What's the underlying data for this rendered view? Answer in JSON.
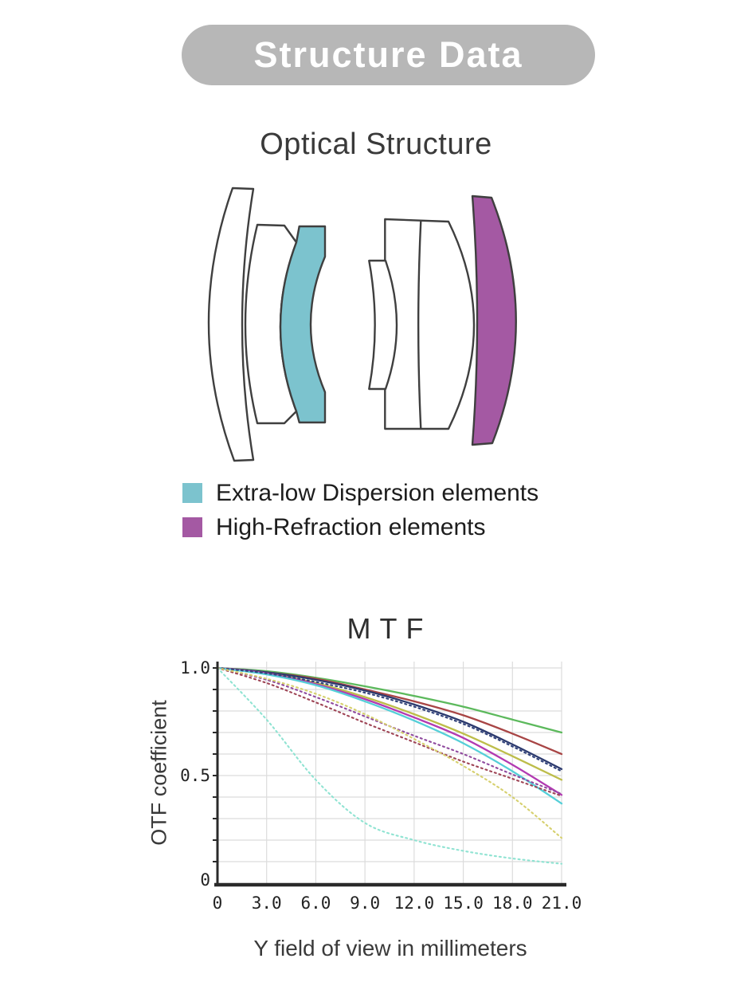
{
  "header": {
    "title": "Structure Data",
    "bg_color": "#b7b7b7",
    "text_color": "#ffffff"
  },
  "optical_structure": {
    "title": "Optical Structure",
    "outline_color": "#3f3f3f",
    "legend": [
      {
        "name": "extra-low-dispersion",
        "label": "Extra-low Dispersion elements",
        "color": "#7cc3ce"
      },
      {
        "name": "high-refraction",
        "label": "High-Refraction elements",
        "color": "#a459a3"
      }
    ]
  },
  "chart_data": {
    "type": "line",
    "title": "MTF",
    "ylabel": "OTF coefficient",
    "xlabel": "Y field of view in millimeters",
    "xlim": [
      0,
      21
    ],
    "ylim": [
      0,
      1
    ],
    "grid": true,
    "grid_step_y": 0.1,
    "grid_color": "#dcdcdc",
    "axis_color": "#2a2a2a",
    "x": [
      0,
      3,
      6,
      9,
      12,
      15,
      18,
      21
    ],
    "xtick_labels": [
      "0",
      "3.0",
      "6.0",
      "9.0",
      "12.0",
      "15.0",
      "18.0",
      "21.0"
    ],
    "ytick_values": [
      1.0,
      0.5,
      0
    ],
    "ytick_labels": [
      "1.0",
      "0.5",
      "0"
    ],
    "legend_position": "none",
    "series": [
      {
        "name": "green-solid",
        "style": "solid",
        "color": "#5cb95c",
        "values": [
          1.0,
          0.985,
          0.955,
          0.915,
          0.87,
          0.82,
          0.76,
          0.7
        ]
      },
      {
        "name": "red-solid",
        "style": "solid",
        "color": "#a84545",
        "values": [
          1.0,
          0.98,
          0.95,
          0.9,
          0.845,
          0.78,
          0.695,
          0.6
        ]
      },
      {
        "name": "navy-solid",
        "style": "solid",
        "color": "#2c3a6e",
        "values": [
          1.0,
          0.98,
          0.945,
          0.895,
          0.83,
          0.75,
          0.645,
          0.53
        ]
      },
      {
        "name": "navy-dotted",
        "style": "dotted",
        "color": "#31427a",
        "values": [
          1.0,
          0.975,
          0.935,
          0.885,
          0.82,
          0.74,
          0.635,
          0.52
        ]
      },
      {
        "name": "yellow-solid",
        "style": "solid",
        "color": "#bdbd4a",
        "values": [
          1.0,
          0.975,
          0.93,
          0.865,
          0.785,
          0.695,
          0.59,
          0.48
        ]
      },
      {
        "name": "magenta-solid",
        "style": "solid",
        "color": "#b23ab2",
        "values": [
          1.0,
          0.975,
          0.925,
          0.855,
          0.77,
          0.675,
          0.55,
          0.41
        ]
      },
      {
        "name": "purple-dotted",
        "style": "dotted",
        "color": "#8f4a9e",
        "values": [
          1.0,
          0.945,
          0.865,
          0.775,
          0.685,
          0.6,
          0.505,
          0.415
        ]
      },
      {
        "name": "maroon-dotted",
        "style": "dotted",
        "color": "#9e4455",
        "values": [
          1.0,
          0.93,
          0.84,
          0.745,
          0.655,
          0.565,
          0.485,
          0.405
        ]
      },
      {
        "name": "cyan-solid",
        "style": "solid",
        "color": "#55cfd8",
        "values": [
          1.0,
          0.97,
          0.92,
          0.845,
          0.755,
          0.65,
          0.52,
          0.37
        ]
      },
      {
        "name": "yellow-dotted",
        "style": "dotted",
        "color": "#d6d06e",
        "values": [
          1.0,
          0.95,
          0.88,
          0.785,
          0.67,
          0.545,
          0.4,
          0.21
        ]
      },
      {
        "name": "lightcyan-dotted",
        "style": "dotted",
        "color": "#8fe3d2",
        "values": [
          1.0,
          0.76,
          0.48,
          0.28,
          0.2,
          0.15,
          0.115,
          0.09
        ]
      }
    ]
  }
}
